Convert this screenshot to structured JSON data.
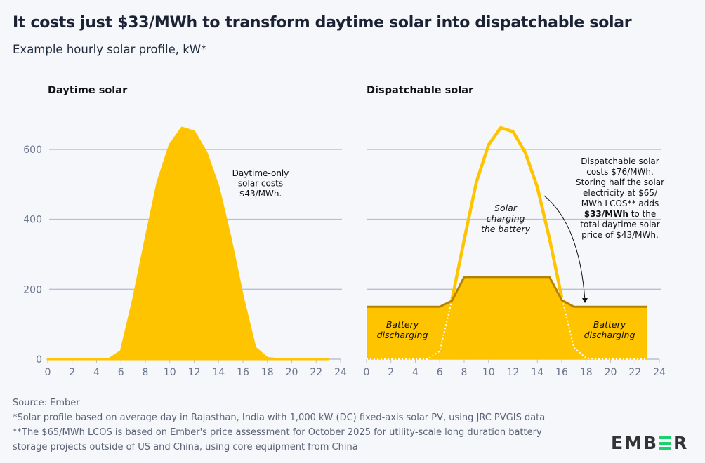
{
  "title": "It costs just $33/MWh to transform daytime solar into dispatchable solar",
  "subtitle": "Example hourly solar profile, kW*",
  "footer": {
    "source": "Source: Ember",
    "note1": "*Solar profile based on average day in Rajasthan, India with 1,000 kW (DC) fixed-axis solar PV, using JRC PVGIS data",
    "note2a": "**The $65/MWh LCOS is based on Ember's price assessment for October 2025 for utility-scale long duration battery",
    "note2b": "storage projects outside of US and China, using core equipment from China"
  },
  "logo": {
    "text_left": "EMB",
    "text_right": "R",
    "full": "EMBER"
  },
  "colors": {
    "solar": "#ffc400",
    "battery_line": "#b58200",
    "grid": "#b9c1cf",
    "axis_text": "#6b7489",
    "accent_green": "#1ad16b"
  },
  "chart_data": [
    {
      "type": "area",
      "title": "Daytime solar",
      "ylim": [
        0,
        700
      ],
      "xlim": [
        0,
        24
      ],
      "yticks": [
        "0",
        "200",
        "400",
        "600"
      ],
      "xticks": [
        "0",
        "2",
        "4",
        "6",
        "8",
        "10",
        "12",
        "14",
        "16",
        "18",
        "20",
        "22",
        "24"
      ],
      "x": [
        0,
        1,
        2,
        3,
        4,
        5,
        6,
        7,
        8,
        9,
        10,
        11,
        12,
        13,
        14,
        15,
        16,
        17,
        18,
        19,
        20,
        21,
        22,
        23
      ],
      "series": [
        {
          "name": "Solar",
          "values": [
            0,
            0,
            0,
            0,
            0,
            0,
            23,
            170,
            341,
            506,
            613,
            662,
            651,
            592,
            492,
            344,
            177,
            33,
            3,
            0,
            0,
            0,
            0,
            0
          ]
        }
      ],
      "annotations": [
        "Daytime-only",
        "solar costs",
        "$43/MWh."
      ]
    },
    {
      "type": "area",
      "title": "Dispatchable solar",
      "ylim": [
        0,
        700
      ],
      "xlim": [
        0,
        24
      ],
      "yticks": [
        "0",
        "200",
        "400",
        "600"
      ],
      "xticks": [
        "0",
        "2",
        "4",
        "6",
        "8",
        "10",
        "12",
        "14",
        "16",
        "18",
        "20",
        "22",
        "24"
      ],
      "x": [
        0,
        1,
        2,
        3,
        4,
        5,
        6,
        7,
        8,
        9,
        10,
        11,
        12,
        13,
        14,
        15,
        16,
        17,
        18,
        19,
        20,
        21,
        22,
        23
      ],
      "series": [
        {
          "name": "Solar",
          "values": [
            0,
            0,
            0,
            0,
            0,
            0,
            23,
            170,
            341,
            506,
            613,
            662,
            651,
            592,
            492,
            344,
            177,
            33,
            3,
            0,
            0,
            0,
            0,
            0
          ]
        },
        {
          "name": "Dispatched output",
          "values": [
            150,
            150,
            150,
            150,
            150,
            150,
            150,
            167,
            235,
            235,
            235,
            235,
            235,
            235,
            235,
            235,
            169,
            150,
            150,
            150,
            150,
            150,
            150,
            150
          ]
        }
      ],
      "labels": {
        "charging": [
          "Solar",
          "charging",
          "the battery"
        ],
        "discharging": [
          "Battery",
          "discharging"
        ]
      },
      "annotations": [
        "Dispatchable solar",
        "costs $76/MWh.",
        "Storing half the solar",
        "electricity at $65/",
        "MWh LCOS** adds",
        "$33/MWh",
        "to the",
        "total daytime solar",
        "price of $43/MWh."
      ]
    }
  ]
}
